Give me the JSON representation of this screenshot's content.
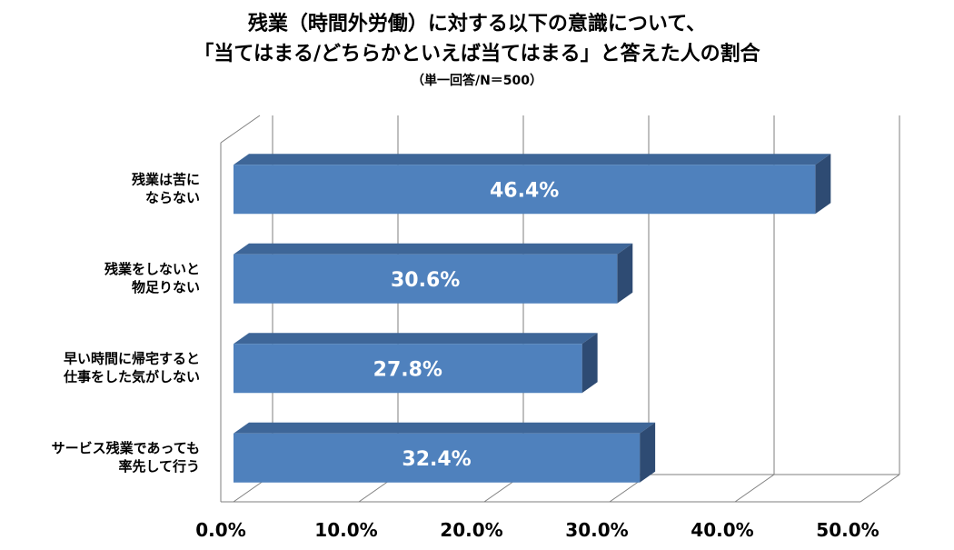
{
  "title_line1": "残業（時間外労働）に対する以下の意識について、",
  "title_line2": "「当てはまる/どちらかといえば当てはまる」と答えた人の割合",
  "subtitle": "（単一回答/N＝500）",
  "chart_data": {
    "type": "bar",
    "orientation": "horizontal",
    "style": "3d",
    "categories": [
      [
        "残業は苦に",
        "ならない"
      ],
      [
        "残業をしないと",
        "物足りない"
      ],
      [
        "早い時間に帰宅すると",
        "仕事をした気がしない"
      ],
      [
        "サービス残業であっても",
        "率先して行う"
      ]
    ],
    "values": [
      46.4,
      30.6,
      27.8,
      32.4
    ],
    "value_labels": [
      "46.4%",
      "30.6%",
      "27.8%",
      "32.4%"
    ],
    "xlim": [
      0,
      50
    ],
    "x_ticks": [
      0,
      10,
      20,
      30,
      40,
      50
    ],
    "x_tick_labels": [
      "0.0%",
      "10.0%",
      "20.0%",
      "30.0%",
      "40.0%",
      "50.0%"
    ],
    "grid": true,
    "colors": {
      "bar_front": "#4F81BD",
      "bar_top": "#3E6698",
      "bar_side": "#2E4B73",
      "gridline": "#7F7F7F",
      "label_text": "#FFFFFF"
    }
  }
}
